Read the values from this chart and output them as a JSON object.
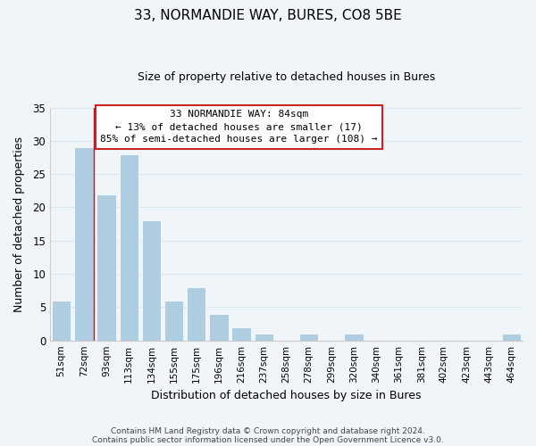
{
  "title": "33, NORMANDIE WAY, BURES, CO8 5BE",
  "subtitle": "Size of property relative to detached houses in Bures",
  "xlabel": "Distribution of detached houses by size in Bures",
  "ylabel": "Number of detached properties",
  "bar_labels": [
    "51sqm",
    "72sqm",
    "93sqm",
    "113sqm",
    "134sqm",
    "155sqm",
    "175sqm",
    "196sqm",
    "216sqm",
    "237sqm",
    "258sqm",
    "278sqm",
    "299sqm",
    "320sqm",
    "340sqm",
    "361sqm",
    "381sqm",
    "402sqm",
    "423sqm",
    "443sqm",
    "464sqm"
  ],
  "bar_values": [
    6,
    29,
    22,
    28,
    18,
    6,
    8,
    4,
    2,
    1,
    0,
    1,
    0,
    1,
    0,
    0,
    0,
    0,
    0,
    0,
    1
  ],
  "bar_color": "#aecde1",
  "ylim": [
    0,
    35
  ],
  "yticks": [
    0,
    5,
    10,
    15,
    20,
    25,
    30,
    35
  ],
  "property_line_label": "33 NORMANDIE WAY: 84sqm",
  "annotation_line1": "← 13% of detached houses are smaller (17)",
  "annotation_line2": "85% of semi-detached houses are larger (108) →",
  "footer1": "Contains HM Land Registry data © Crown copyright and database right 2024.",
  "footer2": "Contains public sector information licensed under the Open Government Licence v3.0.",
  "grid_color": "#d8e8f0",
  "background_color": "#f0f5fa"
}
